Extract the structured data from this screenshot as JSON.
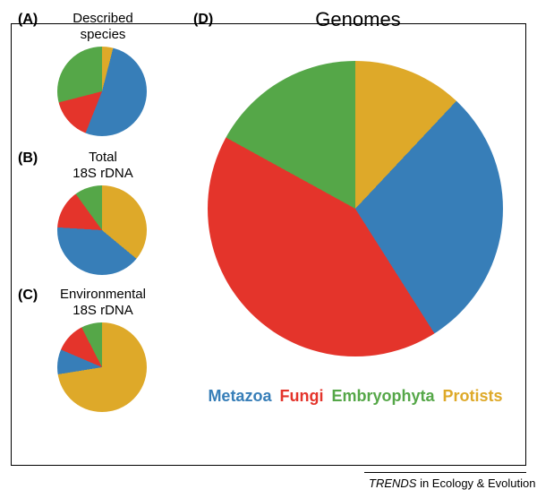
{
  "colors": {
    "metazoa": "#377eb8",
    "fungi": "#e4342b",
    "embryophyta": "#55a748",
    "protists": "#dea929",
    "border": "#000000",
    "background": "#ffffff"
  },
  "legend": {
    "metazoa": "Metazoa",
    "fungi": "Fungi",
    "embryophyta": "Embryophyta",
    "protists": "Protists"
  },
  "panels": {
    "A": {
      "letter": "(A)",
      "title_lines": [
        "Described",
        "species"
      ],
      "title_fontsize": 15,
      "diameter": 100,
      "slices": [
        {
          "key": "protists",
          "value": 4
        },
        {
          "key": "metazoa",
          "value": 52
        },
        {
          "key": "fungi",
          "value": 15
        },
        {
          "key": "embryophyta",
          "value": 29
        }
      ],
      "start_angle": 0
    },
    "B": {
      "letter": "(B)",
      "title_lines": [
        "Total",
        "18S rDNA"
      ],
      "title_fontsize": 15,
      "diameter": 100,
      "slices": [
        {
          "key": "protists",
          "value": 36
        },
        {
          "key": "metazoa",
          "value": 40
        },
        {
          "key": "fungi",
          "value": 14
        },
        {
          "key": "embryophyta",
          "value": 10
        }
      ],
      "start_angle": 0
    },
    "C": {
      "letter": "(C)",
      "title_lines": [
        "Environmental",
        "18S rDNA"
      ],
      "title_fontsize": 15,
      "diameter": 100,
      "slices": [
        {
          "key": "protists",
          "value": 78
        },
        {
          "key": "metazoa",
          "value": 9
        },
        {
          "key": "fungi",
          "value": 11
        },
        {
          "key": "embryophyta",
          "value": 2
        }
      ],
      "start_angle": -20
    },
    "D": {
      "letter": "(D)",
      "title_lines": [
        "Genomes"
      ],
      "title_fontsize": 22,
      "diameter": 330,
      "slices": [
        {
          "key": "protists",
          "value": 12
        },
        {
          "key": "metazoa",
          "value": 29
        },
        {
          "key": "fungi",
          "value": 42
        },
        {
          "key": "embryophyta",
          "value": 17
        }
      ],
      "start_angle": 0
    }
  },
  "credit": {
    "prefix": "TRENDS",
    "rest": " in Ecology & Evolution"
  }
}
